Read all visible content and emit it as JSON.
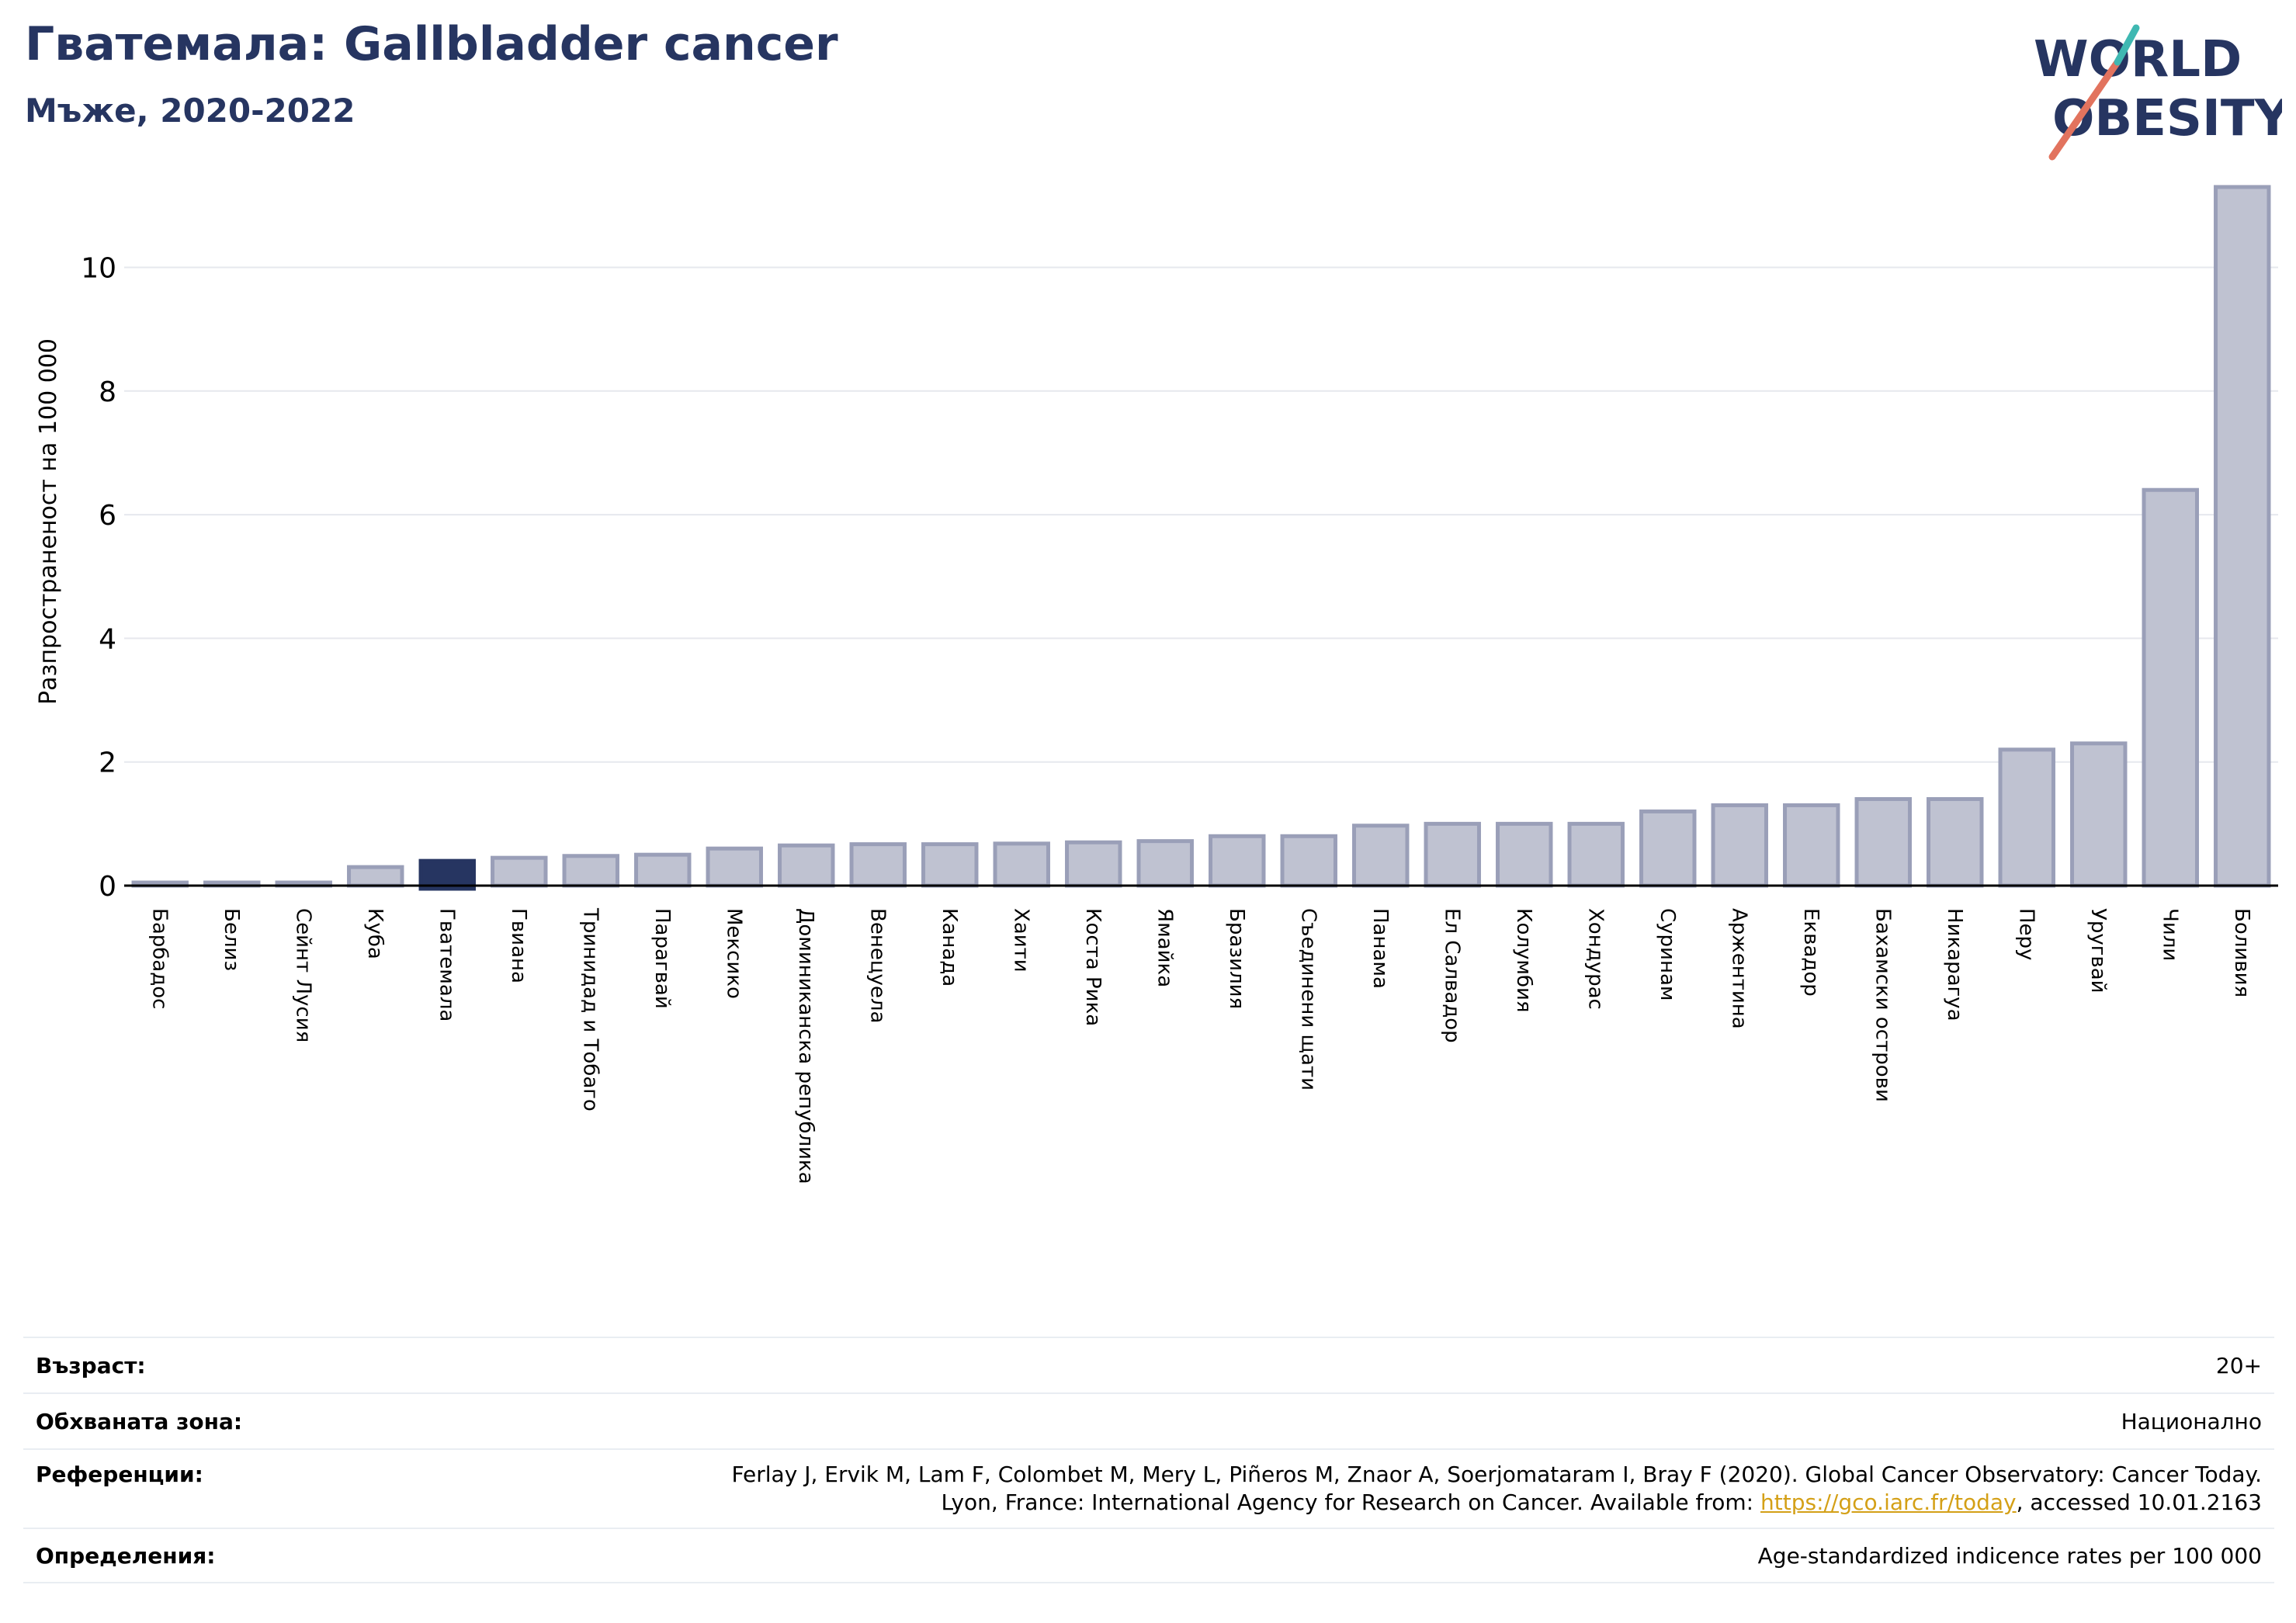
{
  "header": {
    "title": "Гватемала: Gallbladder cancer",
    "subtitle": "Мъже, 2020-2022"
  },
  "logo": {
    "line1": "WORLD",
    "line2": "OBESITY"
  },
  "chart_data": {
    "type": "bar",
    "ylabel": "Разпространеност  на 100 000",
    "ylim": [
      0,
      11.5
    ],
    "yticks": [
      0,
      2,
      4,
      6,
      8,
      10
    ],
    "grid": true,
    "highlight": "Гватемала",
    "colors": {
      "bar": "#bfc2d1",
      "bar_border": "#9a9fb8",
      "highlight": "#263561",
      "grid": "#e6e8ee"
    },
    "categories": [
      "Барбадос",
      "Белиз",
      "Сейнт Лусия",
      "Куба",
      "Гватемала",
      "Гвиана",
      "Тринидад и Тобаго",
      "Парагвай",
      "Мексико",
      "Доминиканска република",
      "Венецуела",
      "Канада",
      "Хаити",
      "Коста Рика",
      "Ямайка",
      "Бразилия",
      "Съединени щати",
      "Панама",
      "Ел Салвадор",
      "Колумбия",
      "Хондурас",
      "Суринам",
      "Аржентина",
      "Еквадор",
      "Бахамски острови",
      "Никарагуа",
      "Перу",
      "Уругвай",
      "Чили",
      "Боливия"
    ],
    "values": [
      0.05,
      0.05,
      0.05,
      0.3,
      0.4,
      0.45,
      0.48,
      0.5,
      0.6,
      0.65,
      0.67,
      0.67,
      0.68,
      0.7,
      0.72,
      0.8,
      0.8,
      0.97,
      1.0,
      1.0,
      1.0,
      1.2,
      1.3,
      1.3,
      1.4,
      1.4,
      2.2,
      2.3,
      6.4,
      11.3
    ]
  },
  "footer": {
    "age_label": "Възраст:",
    "age_value": "20+",
    "area_label": "Обхваната зона:",
    "area_value": "Национално",
    "ref_label": "Референции:",
    "ref_line1": "Ferlay J, Ervik M, Lam F, Colombet M, Mery L, Piñeros M, Znaor A, Soerjomataram I, Bray F (2020). Global Cancer Observatory: Cancer Today.",
    "ref_line2_pre": "Lyon, France: International Agency for Research on Cancer. Available from: ",
    "ref_link": "https://gco.iarc.fr/today",
    "ref_line2_post": ", accessed 10.01.2163",
    "def_label": "Определения:",
    "def_value": "Age-standardized indicence rates per 100 000"
  }
}
